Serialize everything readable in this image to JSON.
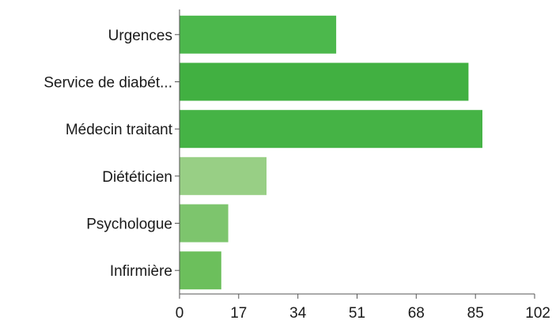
{
  "chart_data": {
    "type": "bar",
    "orientation": "horizontal",
    "title": "",
    "xlabel": "",
    "ylabel": "",
    "categories": [
      "Urgences",
      "Service de diabét...",
      "Médecin traitant",
      "Diététicien",
      "Psychologue",
      "Infirmière"
    ],
    "values": [
      45,
      83,
      87,
      25,
      14,
      12
    ],
    "bar_colors": [
      "#4cb84c",
      "#41b041",
      "#45b345",
      "#98cf85",
      "#7dc56d",
      "#6cbf5c"
    ],
    "xlim": [
      0,
      102
    ],
    "xticks": [
      "0",
      "17",
      "34",
      "51",
      "68",
      "85",
      "102"
    ],
    "grid": false,
    "legend": "none"
  }
}
